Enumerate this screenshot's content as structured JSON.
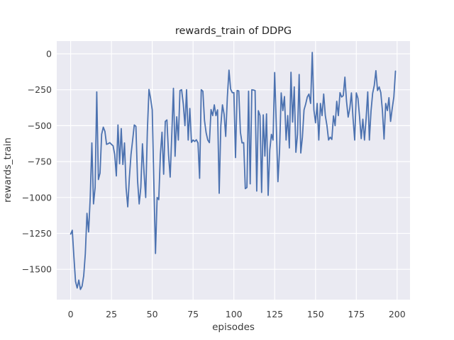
{
  "figure": {
    "title": "rewards_train of DDPG",
    "xlabel": "episodes",
    "ylabel": "rewards_train"
  },
  "colors": {
    "figure_background": "#ffffff",
    "axes_background": "#eaeaf2",
    "gridline": "#ffffff",
    "line": "#4c72b0",
    "text": "#262626"
  },
  "chart_data": {
    "type": "line",
    "title": "rewards_train of DDPG",
    "xlabel": "episodes",
    "ylabel": "rewards_train",
    "style": "seaborn-darkgrid",
    "grid": true,
    "legend": false,
    "x_ticks": [
      0,
      25,
      50,
      75,
      100,
      125,
      150,
      175,
      200
    ],
    "y_ticks": [
      0,
      -250,
      -500,
      -750,
      -1000,
      -1250,
      -1500
    ],
    "xlim": [
      -8.5,
      207.9
    ],
    "ylim": [
      -1711,
      89
    ],
    "x_start": 0,
    "x_step": 1,
    "series": [
      {
        "name": "rewards_train",
        "color": "#4c72b0",
        "values": [
          -1255,
          -1228,
          -1415,
          -1585,
          -1630,
          -1575,
          -1640,
          -1618,
          -1545,
          -1390,
          -1110,
          -1240,
          -1000,
          -620,
          -1045,
          -930,
          -265,
          -875,
          -830,
          -560,
          -510,
          -540,
          -630,
          -625,
          -618,
          -630,
          -640,
          -700,
          -850,
          -495,
          -765,
          -520,
          -770,
          -620,
          -935,
          -1065,
          -860,
          -700,
          -600,
          -495,
          -505,
          -880,
          -1045,
          -930,
          -626,
          -830,
          -1000,
          -540,
          -248,
          -310,
          -390,
          -900,
          -1390,
          -1000,
          -1015,
          -700,
          -545,
          -838,
          -470,
          -460,
          -700,
          -858,
          -560,
          -240,
          -713,
          -438,
          -600,
          -255,
          -250,
          -350,
          -500,
          -250,
          -600,
          -380,
          -616,
          -600,
          -610,
          -598,
          -620,
          -866,
          -250,
          -260,
          -465,
          -550,
          -600,
          -618,
          -388,
          -430,
          -355,
          -430,
          -390,
          -971,
          -500,
          -355,
          -420,
          -575,
          -300,
          -113,
          -245,
          -270,
          -270,
          -722,
          -255,
          -258,
          -545,
          -620,
          -618,
          -938,
          -930,
          -260,
          -905,
          -250,
          -252,
          -255,
          -955,
          -396,
          -430,
          -965,
          -425,
          -712,
          -418,
          -985,
          -670,
          -560,
          -600,
          -130,
          -500,
          -890,
          -672,
          -272,
          -395,
          -297,
          -600,
          -430,
          -655,
          -128,
          -475,
          -230,
          -685,
          -560,
          -144,
          -690,
          -580,
          -390,
          -350,
          -300,
          -280,
          -345,
          10,
          -390,
          -480,
          -345,
          -600,
          -345,
          -430,
          -280,
          -430,
          -500,
          -600,
          -580,
          -596,
          -432,
          -500,
          -330,
          -430,
          -270,
          -300,
          -290,
          -162,
          -330,
          -440,
          -380,
          -272,
          -450,
          -600,
          -272,
          -310,
          -440,
          -590,
          -455,
          -600,
          -450,
          -265,
          -600,
          -400,
          -275,
          -220,
          -117,
          -255,
          -230,
          -270,
          -395,
          -593,
          -345,
          -395,
          -305,
          -470,
          -380,
          -300,
          -120
        ]
      }
    ]
  }
}
